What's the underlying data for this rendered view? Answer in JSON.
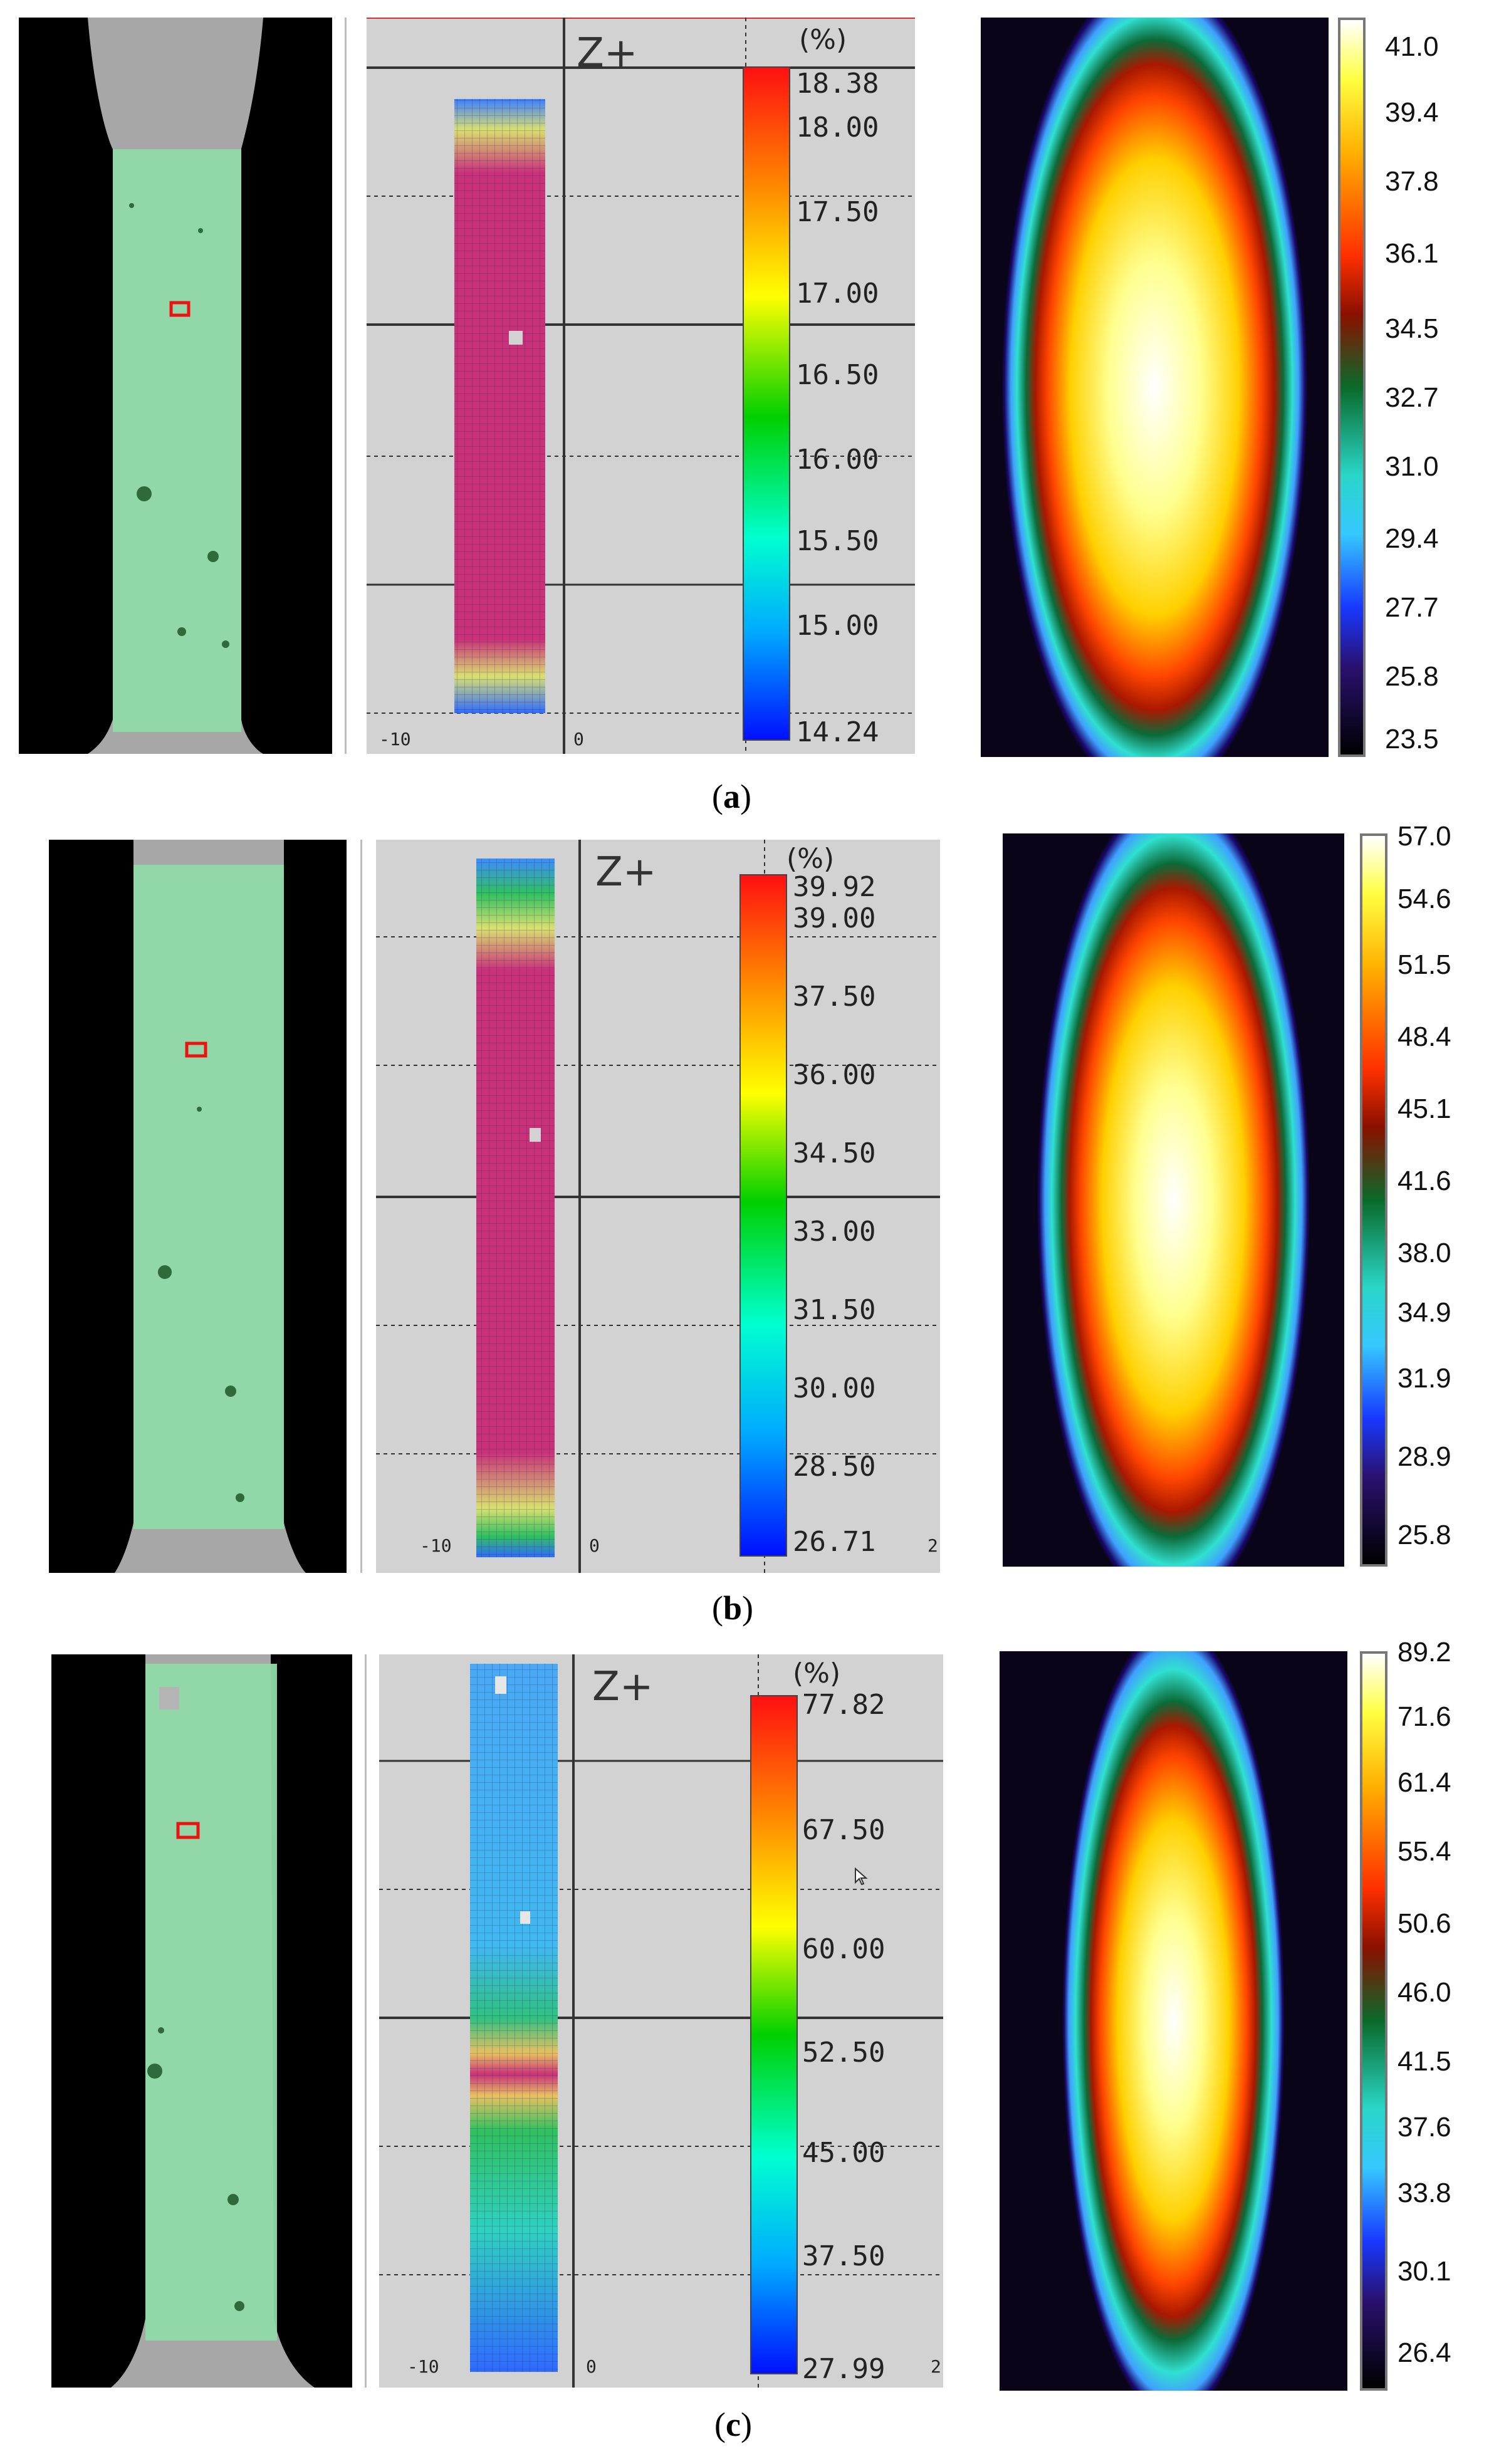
{
  "rows": [
    {
      "caption_letter": "a",
      "dic": {
        "axis_label": "Z+",
        "unit": "(%)",
        "colorbar_labels": [
          "18.38",
          "18.00",
          "17.50",
          "17.00",
          "16.50",
          "16.00",
          "15.50",
          "15.00",
          "14.24"
        ],
        "x_ticks": [
          "-10",
          "0"
        ]
      },
      "thermal": {
        "scale_labels": [
          "41.0",
          "39.4",
          "37.8",
          "36.1",
          "34.5",
          "32.7",
          "31.0",
          "29.4",
          "27.7",
          "25.8",
          "23.5"
        ]
      }
    },
    {
      "caption_letter": "b",
      "dic": {
        "axis_label": "Z+",
        "unit": "(%)",
        "colorbar_labels": [
          "39.92",
          "39.00",
          "37.50",
          "36.00",
          "34.50",
          "33.00",
          "31.50",
          "30.00",
          "28.50",
          "26.71"
        ],
        "x_ticks": [
          "-10",
          "0",
          "2"
        ]
      },
      "thermal": {
        "scale_labels": [
          "57.0",
          "54.6",
          "51.5",
          "48.4",
          "45.1",
          "41.6",
          "38.0",
          "34.9",
          "31.9",
          "28.9",
          "25.8"
        ]
      }
    },
    {
      "caption_letter": "c",
      "dic": {
        "axis_label": "Z+",
        "unit": "(%)",
        "colorbar_labels": [
          "77.82",
          "67.50",
          "60.00",
          "52.50",
          "45.00",
          "37.50",
          "27.99"
        ],
        "x_ticks": [
          "-10",
          "0",
          "2"
        ]
      },
      "thermal": {
        "scale_labels": [
          "89.2",
          "71.6",
          "61.4",
          "55.4",
          "50.6",
          "46.0",
          "41.5",
          "37.6",
          "33.8",
          "30.1",
          "26.4"
        ]
      }
    }
  ],
  "colors": {
    "specimen_green": "#8fd9a8",
    "grey_grip": "#a9a9a9",
    "dic_background": "#d2d2d2",
    "mesh_magenta": "#c8327a",
    "mesh_blue": "#2f8cff"
  }
}
